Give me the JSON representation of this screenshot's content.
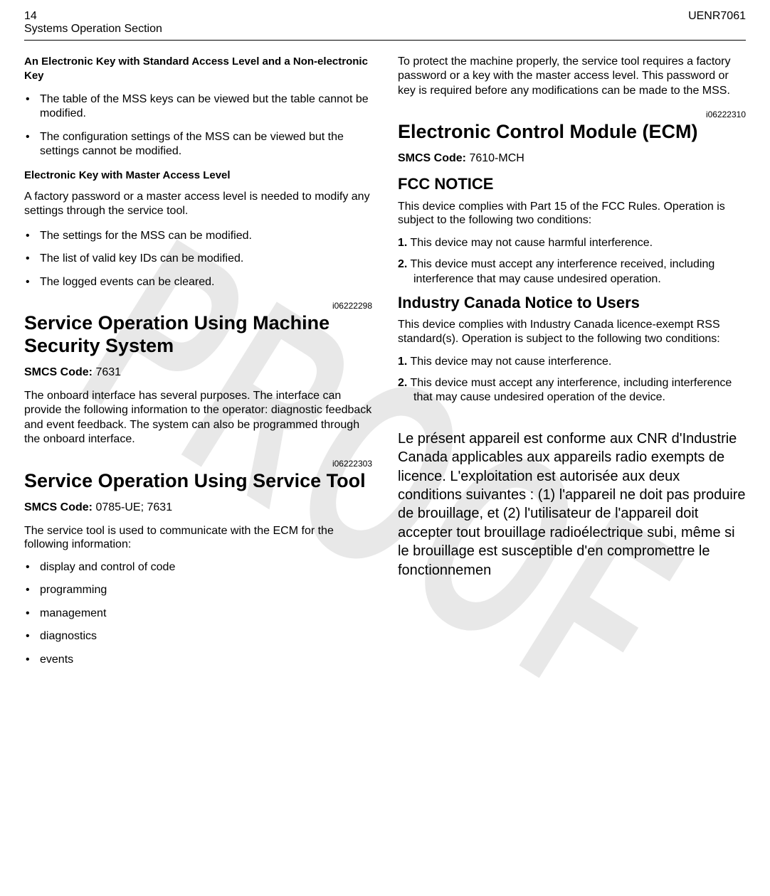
{
  "header": {
    "page_number": "14",
    "section_title": "Systems Operation Section",
    "doc_id": "UENR7061"
  },
  "watermark": "PROOF",
  "left": {
    "sub1_title": "An Electronic Key with Standard Access Level and a Non-electronic Key",
    "sub1_bullets": [
      "The table of the MSS keys can be viewed but the table cannot be modified.",
      "The configuration settings of the MSS can be viewed but the settings cannot be modified."
    ],
    "sub2_title": "Electronic Key with Master Access Level",
    "sub2_para": "A factory password or a master access level is needed to modify any settings through the service tool.",
    "sub2_bullets": [
      "The settings for the MSS can be modified.",
      "The list of valid key IDs can be modified.",
      "The logged events can be cleared."
    ],
    "ref1": "i06222298",
    "sec1_title": "Service Operation Using Machine Security System",
    "sec1_smcs": "7631",
    "sec1_para": "The onboard interface has several purposes. The interface can provide the following information to the operator: diagnostic feedback and event feedback. The system can also be programmed through the onboard interface.",
    "ref2": "i06222303",
    "sec2_title": "Service Operation Using Service Tool",
    "sec2_smcs": "0785-UE; 7631",
    "sec2_para": "The service tool is used to communicate with the ECM for the following information:",
    "sec2_bullets": [
      "display and control of code",
      "programming",
      "management",
      "diagnostics",
      "events"
    ]
  },
  "right": {
    "intro_para": "To protect the machine properly, the service tool requires a factory password or a key with the master access level. This password or key is required before any modifications can be made to the MSS.",
    "ref3": "i06222310",
    "sec3_title": "Electronic Control Module (ECM)",
    "sec3_smcs": "7610-MCH",
    "fcc_title": "FCC NOTICE",
    "fcc_para": "This device complies with Part 15 of the FCC Rules. Operation is subject to the following two conditions:",
    "fcc_items": [
      "This device may not cause harmful interference.",
      "This device must accept any interference received, including interference that may cause undesired operation."
    ],
    "ic_title": "Industry Canada Notice to Users",
    "ic_para": "This device complies with Industry Canada licence-exempt RSS standard(s). Operation is subject to the following two conditions:",
    "ic_items": [
      "This device may not cause interference.",
      "This device must accept any interference, including interference that may cause undesired operation of the device."
    ],
    "french_text": "Le présent appareil est conforme aux CNR d'Industrie Canada applicables aux appareils radio exempts de licence. L'exploitation est autorisée aux deux conditions suivantes : (1) l'appareil ne doit pas produire de brouillage, et\n(2) l'utilisateur de l'appareil doit accepter tout brouillage radioélectrique subi, même si le brouillage est susceptible d'en compromettre le fonctionnemen"
  },
  "smcs_label": "SMCS Code:",
  "num_1": "1.",
  "num_2": "2."
}
